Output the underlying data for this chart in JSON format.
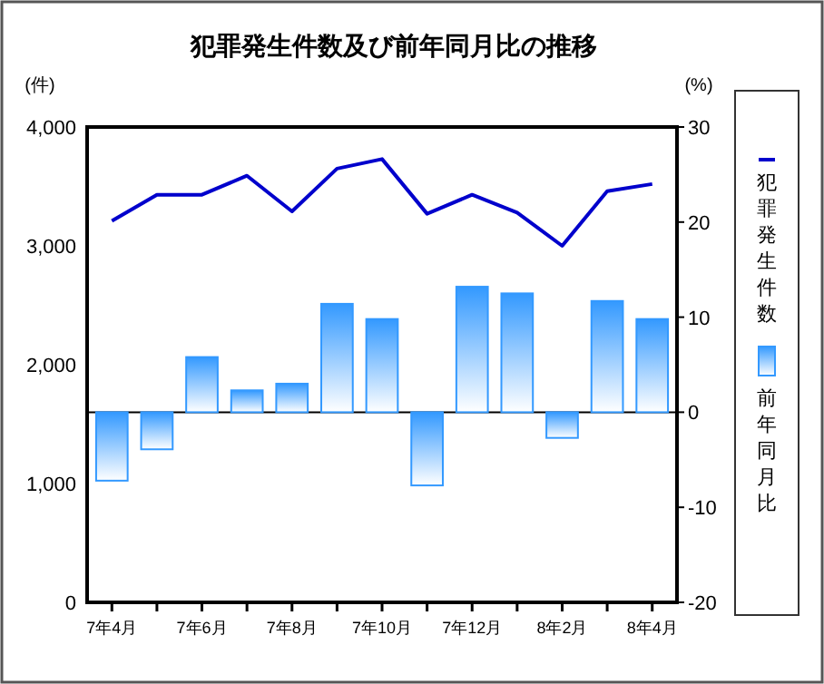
{
  "chart_data": {
    "type": "bar",
    "title": "犯罪発生件数及び前年同月比の推移",
    "ylabel": "(件)",
    "y2label": "(%)",
    "categories": [
      "7年4月",
      null,
      "7年6月",
      null,
      "7年8月",
      null,
      "7年10月",
      null,
      "7年12月",
      null,
      "8年2月",
      null,
      "8年4月"
    ],
    "series": [
      {
        "name": "犯罪発生件数",
        "type": "line",
        "color": "#0000cc",
        "values": [
          3210,
          3430,
          3430,
          3590,
          3290,
          3650,
          3730,
          3270,
          3430,
          3280,
          3000,
          3460,
          3520
        ]
      },
      {
        "name": "前年同月比",
        "axis": "y2",
        "color": "#3399ff",
        "values": [
          -7.2,
          -3.9,
          5.8,
          2.3,
          3.0,
          11.4,
          9.8,
          -7.7,
          13.2,
          12.5,
          -2.7,
          11.7,
          9.8
        ]
      }
    ],
    "ylim": [
      0,
      4000
    ],
    "yticks": [
      {
        "value": 0,
        "label": "0"
      },
      {
        "value": 1000,
        "label": "1,000"
      },
      {
        "value": 2000,
        "label": "2,000"
      },
      {
        "value": 3000,
        "label": "3,000"
      },
      {
        "value": 4000,
        "label": "4,000"
      }
    ],
    "y2lim": [
      -20,
      30
    ],
    "y2ticks": [
      -20,
      -10,
      0,
      10,
      20,
      30
    ],
    "ref_lines": [
      {
        "axis": "y2",
        "value": 0,
        "color": "#000000"
      }
    ],
    "legend": "right",
    "grid": false
  }
}
